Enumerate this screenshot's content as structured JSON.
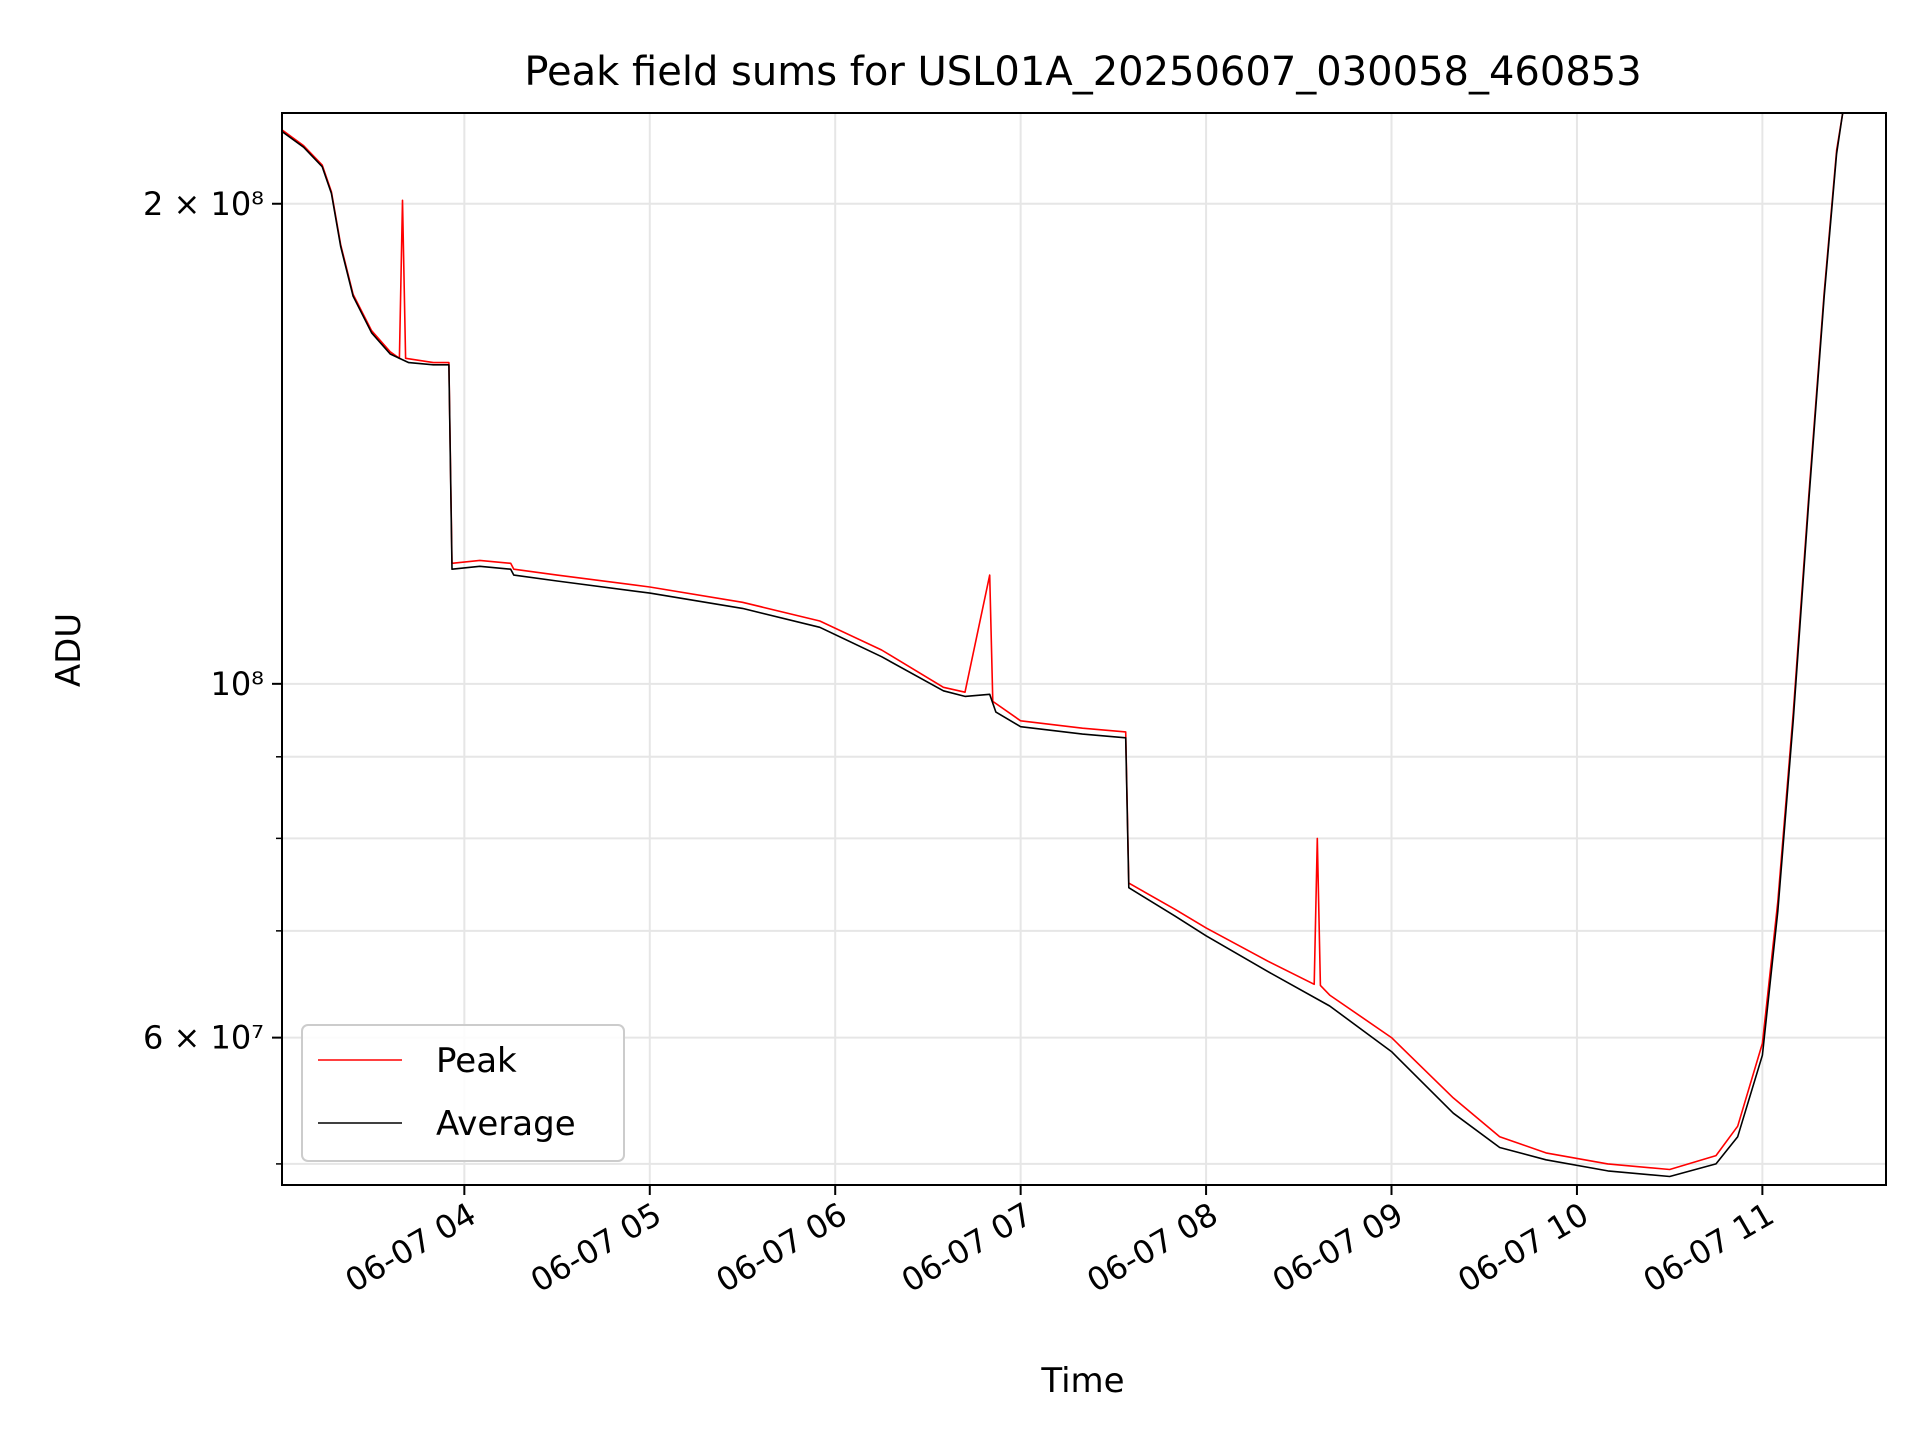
{
  "chart_data": {
    "type": "line",
    "title": "Peak field sums for USL01A_20250607_030058_460853",
    "xlabel": "Time",
    "ylabel": "ADU",
    "yscale": "log",
    "xlim": [
      "06-07 03:01",
      "06-07 11:40"
    ],
    "ylim": [
      48500000,
      228000000
    ],
    "x_ticks": [
      {
        "t": "06-07 04:00",
        "label": "06-07 04"
      },
      {
        "t": "06-07 05:00",
        "label": "06-07 05"
      },
      {
        "t": "06-07 06:00",
        "label": "06-07 06"
      },
      {
        "t": "06-07 07:00",
        "label": "06-07 07"
      },
      {
        "t": "06-07 08:00",
        "label": "06-07 08"
      },
      {
        "t": "06-07 09:00",
        "label": "06-07 09"
      },
      {
        "t": "06-07 10:00",
        "label": "06-07 10"
      },
      {
        "t": "06-07 11:00",
        "label": "06-07 11"
      }
    ],
    "y_ticks": [
      {
        "value": 200000000,
        "label": "2 × 10⁸"
      },
      {
        "value": 100000000,
        "label": "10⁸"
      },
      {
        "value": 60000000,
        "label": "6 × 10⁷"
      }
    ],
    "y_minor_ticks": [
      50000000,
      70000000,
      80000000,
      90000000
    ],
    "grid": true,
    "legend_position": "lower-left",
    "series": [
      {
        "name": "Average",
        "color": "#000000",
        "points": [
          [
            "06-07 03:01",
            222000000
          ],
          [
            "06-07 03:08",
            217000000
          ],
          [
            "06-07 03:14",
            211000000
          ],
          [
            "06-07 03:17",
            203000000
          ],
          [
            "06-07 03:20",
            188000000
          ],
          [
            "06-07 03:24",
            175000000
          ],
          [
            "06-07 03:30",
            166000000
          ],
          [
            "06-07 03:36",
            161000000
          ],
          [
            "06-07 03:42",
            159000000
          ],
          [
            "06-07 03:50",
            158500000
          ],
          [
            "06-07 03:55",
            158500000
          ],
          [
            "06-07 03:56",
            118000000
          ],
          [
            "06-07 04:05",
            118500000
          ],
          [
            "06-07 04:15",
            118000000
          ],
          [
            "06-07 04:16",
            117000000
          ],
          [
            "06-07 04:30",
            116000000
          ],
          [
            "06-07 05:00",
            114000000
          ],
          [
            "06-07 05:30",
            111500000
          ],
          [
            "06-07 05:55",
            108500000
          ],
          [
            "06-07 06:15",
            104000000
          ],
          [
            "06-07 06:35",
            99000000
          ],
          [
            "06-07 06:42",
            98200000
          ],
          [
            "06-07 06:50",
            98500000
          ],
          [
            "06-07 06:52",
            96000000
          ],
          [
            "06-07 07:00",
            94000000
          ],
          [
            "06-07 07:20",
            93000000
          ],
          [
            "06-07 07:34",
            92500000
          ],
          [
            "06-07 07:35",
            74500000
          ],
          [
            "06-07 07:50",
            71500000
          ],
          [
            "06-07 08:00",
            69500000
          ],
          [
            "06-07 08:20",
            66000000
          ],
          [
            "06-07 08:40",
            62800000
          ],
          [
            "06-07 09:00",
            58800000
          ],
          [
            "06-07 09:20",
            53800000
          ],
          [
            "06-07 09:35",
            51200000
          ],
          [
            "06-07 09:50",
            50300000
          ],
          [
            "06-07 10:10",
            49500000
          ],
          [
            "06-07 10:30",
            49100000
          ],
          [
            "06-07 10:45",
            50000000
          ],
          [
            "06-07 10:52",
            52000000
          ],
          [
            "06-07 11:00",
            58500000
          ],
          [
            "06-07 11:05",
            72000000
          ],
          [
            "06-07 11:10",
            95000000
          ],
          [
            "06-07 11:15",
            130000000
          ],
          [
            "06-07 11:20",
            175000000
          ],
          [
            "06-07 11:24",
            215000000
          ],
          [
            "06-07 11:26",
            228000000
          ]
        ]
      },
      {
        "name": "Peak",
        "color": "#ff0000",
        "points": [
          [
            "06-07 03:01",
            222500000
          ],
          [
            "06-07 03:08",
            217500000
          ],
          [
            "06-07 03:14",
            211500000
          ],
          [
            "06-07 03:17",
            203500000
          ],
          [
            "06-07 03:20",
            188500000
          ],
          [
            "06-07 03:24",
            175500000
          ],
          [
            "06-07 03:30",
            166500000
          ],
          [
            "06-07 03:36",
            161500000
          ],
          [
            "06-07 03:39",
            160000000
          ],
          [
            "06-07 03:40",
            201000000
          ],
          [
            "06-07 03:41",
            160000000
          ],
          [
            "06-07 03:50",
            159000000
          ],
          [
            "06-07 03:55",
            159000000
          ],
          [
            "06-07 03:56",
            119000000
          ],
          [
            "06-07 04:05",
            119500000
          ],
          [
            "06-07 04:15",
            119000000
          ],
          [
            "06-07 04:16",
            118000000
          ],
          [
            "06-07 04:30",
            117000000
          ],
          [
            "06-07 05:00",
            115000000
          ],
          [
            "06-07 05:30",
            112500000
          ],
          [
            "06-07 05:55",
            109500000
          ],
          [
            "06-07 06:15",
            105000000
          ],
          [
            "06-07 06:35",
            99500000
          ],
          [
            "06-07 06:42",
            98800000
          ],
          [
            "06-07 06:50",
            117000000
          ],
          [
            "06-07 06:51",
            97500000
          ],
          [
            "06-07 07:00",
            94800000
          ],
          [
            "06-07 07:20",
            93800000
          ],
          [
            "06-07 07:34",
            93300000
          ],
          [
            "06-07 07:35",
            75000000
          ],
          [
            "06-07 07:50",
            72200000
          ],
          [
            "06-07 08:00",
            70300000
          ],
          [
            "06-07 08:20",
            67000000
          ],
          [
            "06-07 08:35",
            64800000
          ],
          [
            "06-07 08:36",
            80000000
          ],
          [
            "06-07 08:37",
            64700000
          ],
          [
            "06-07 08:40",
            63800000
          ],
          [
            "06-07 09:00",
            60000000
          ],
          [
            "06-07 09:20",
            55000000
          ],
          [
            "06-07 09:35",
            52000000
          ],
          [
            "06-07 09:50",
            50800000
          ],
          [
            "06-07 10:10",
            50000000
          ],
          [
            "06-07 10:30",
            49600000
          ],
          [
            "06-07 10:45",
            50600000
          ],
          [
            "06-07 10:52",
            52800000
          ],
          [
            "06-07 11:00",
            59500000
          ],
          [
            "06-07 11:05",
            73000000
          ],
          [
            "06-07 11:10",
            96000000
          ],
          [
            "06-07 11:15",
            131000000
          ],
          [
            "06-07 11:20",
            176000000
          ],
          [
            "06-07 11:24",
            216000000
          ],
          [
            "06-07 11:26",
            228000000
          ]
        ]
      }
    ]
  }
}
